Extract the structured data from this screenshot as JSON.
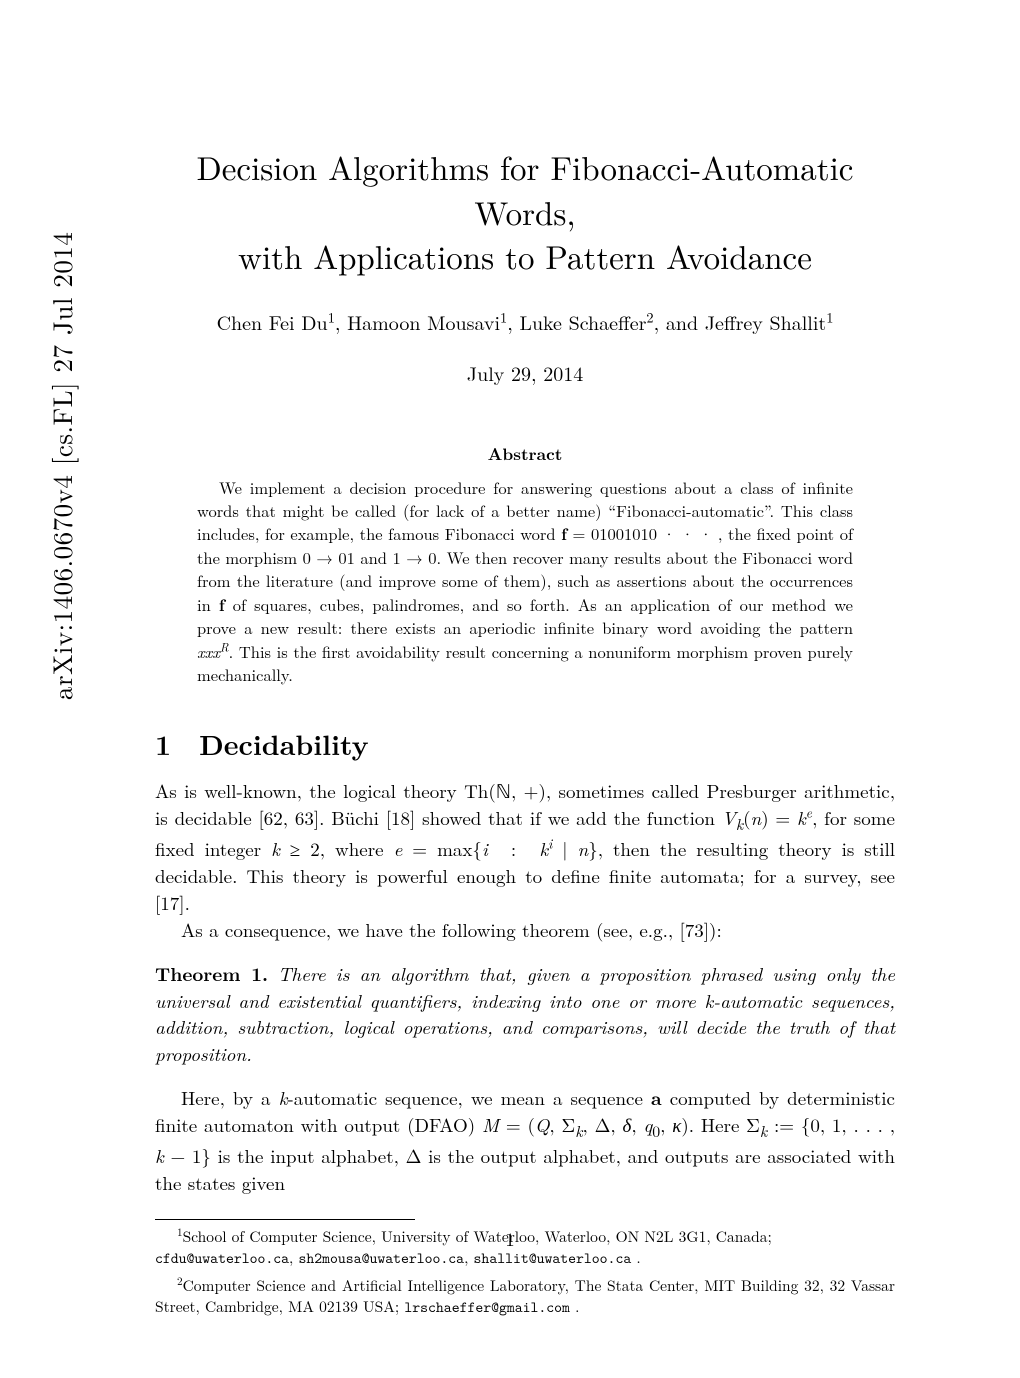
{
  "arxiv_stamp": "arXiv:1406.0670v4  [cs.FL]  27 Jul 2014",
  "title_line1": "Decision Algorithms for Fibonacci-Automatic Words,",
  "title_line2": "with Applications to Pattern Avoidance",
  "authors_html": "Chen Fei Du<sup>1</sup>, Hamoon Mousavi<sup>1</sup>, Luke Schaeffer<sup>2</sup>, and Jeffrey Shallit<sup>1</sup>",
  "date": "July 29, 2014",
  "abstract_heading": "Abstract",
  "abstract_body_html": "<span class=\"indent\"></span>We implement a decision procedure for answering questions about a class of infinite words that might be called (for lack of a better name) “Fibonacci-automatic”. This class includes, for example, the famous Fibonacci word <span class=\"bf\">f</span> = 01001010 · · · , the fixed point of the morphism 0 → 01 and 1 → 0. We then recover many results about the Fibonacci word from the literature (and improve some of them), such as assertions about the occurrences in <span class=\"bf\">f</span> of squares, cubes, palindromes, and so forth. As an application of our method we prove a new result: there exists an aperiodic infinite binary word avoiding the pattern <span class=\"it\">xxx<sup>R</sup></span>. This is the first avoidability result concerning a nonuniform morphism proven purely mechanically.",
  "section": {
    "number": "1",
    "title": "Decidability"
  },
  "para1_html": "As is well-known, the logical theory Th(ℕ, +), sometimes called Presburger arithmetic, is decidable [62, 63]. Büchi [18] showed that if we add the function <span class=\"it\">V<sub>k</sub></span>(<span class=\"it\">n</span>) = <span class=\"it\">k<sup>e</sup></span>, for some fixed integer <span class=\"it\">k</span> ≥ 2, where <span class=\"it\">e</span> = max{<span class=\"it\">i</span>&nbsp; :&nbsp; <span class=\"it\">k<sup>i</sup></span> | <span class=\"it\">n</span>}, then the resulting theory is still decidable. This theory is powerful enough to define finite automata; for a survey, see [17].",
  "para2_html": "<span class=\"para-indent\"></span>As a consequence, we have the following theorem (see, e.g., [73]):",
  "theorem": {
    "label": "Theorem 1.",
    "body_html": "There is an algorithm that, given a proposition phrased using only the universal and existential quantifiers, indexing into one or more k-automatic sequences, addition, subtraction, logical operations, and comparisons, will decide the truth of that proposition."
  },
  "para3_html": "<span class=\"para-indent\"></span>Here, by a <span class=\"it\">k</span>-automatic sequence, we mean a sequence <span class=\"bf\">a</span> computed by deterministic finite automaton with output (DFAO) <span class=\"it\">M</span> = (<span class=\"it\">Q</span>, Σ<sub><span class=\"it\">k</span></sub>, Δ, <span class=\"it\">δ</span>, <span class=\"it\">q</span><sub>0</sub>, <span class=\"it\">κ</span>). Here Σ<sub><span class=\"it\">k</span></sub> := {0, 1, . . . , <span class=\"it\">k</span> − 1} is the input alphabet, Δ is the output alphabet, and outputs are associated with the states given",
  "footnotes": {
    "fn1_html": "<span class=\"fn-indent\"></span><sup>1</sup>School of Computer Science, University of Waterloo, Waterloo, ON N2L 3G1, Canada;<br><span class=\"tt\">cfdu@uwaterloo.ca</span>, <span class=\"tt\">sh2mousa@uwaterloo.ca</span>, <span class=\"tt\">shallit@uwaterloo.ca</span> .",
    "fn2_html": "<span class=\"fn-indent\"></span><sup>2</sup>Computer Science and Artificial Intelligence Laboratory, The Stata Center, MIT Building 32, 32 Vassar Street, Cambridge, MA 02139 USA; <span class=\"tt\">lrschaeffer@gmail.com</span> ."
  },
  "page_number": "1"
}
